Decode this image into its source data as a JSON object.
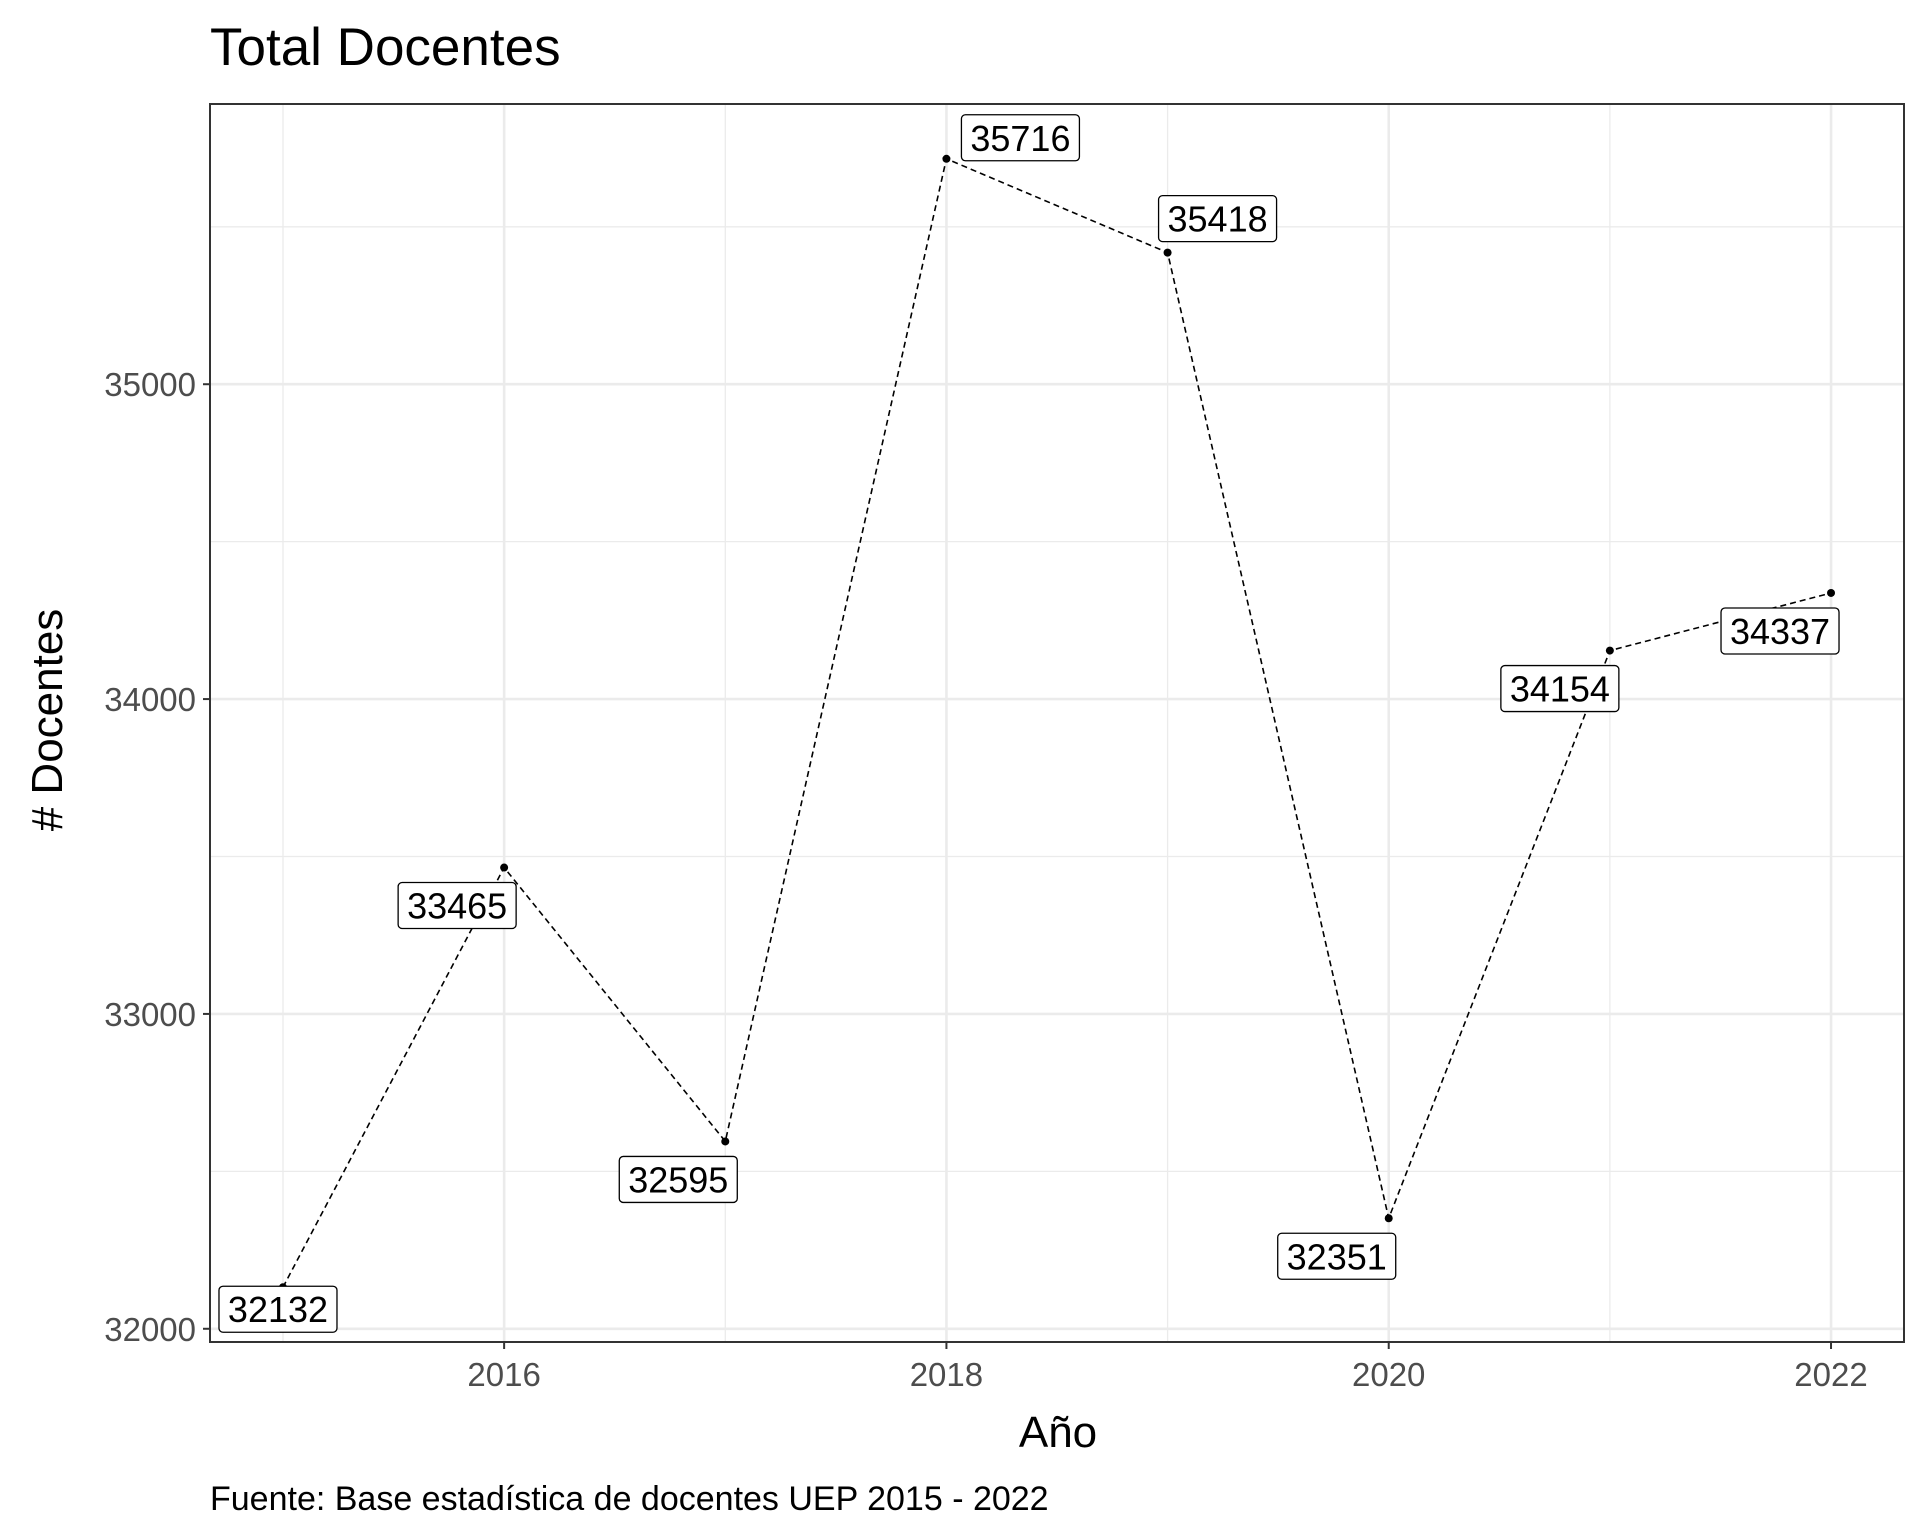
{
  "chart_data": {
    "type": "line",
    "title": "Total Docentes",
    "xlabel": "Año",
    "ylabel": "# Docentes",
    "caption": "Fuente: Base estadística de docentes UEP 2015 - 2022",
    "x": [
      2015,
      2016,
      2017,
      2018,
      2019,
      2020,
      2021,
      2022
    ],
    "values": [
      32132,
      33465,
      32595,
      35716,
      35418,
      32351,
      34154,
      34337
    ],
    "data_labels": [
      "32132",
      "33465",
      "32595",
      "35716",
      "35418",
      "32351",
      "34154",
      "34337"
    ],
    "xticks": [
      2016,
      2018,
      2020,
      2022
    ],
    "xtick_labels": [
      "2016",
      "2018",
      "2020",
      "2022"
    ],
    "yticks": [
      32000,
      33000,
      34000,
      35000
    ],
    "ytick_labels": [
      "32000",
      "33000",
      "34000",
      "35000"
    ],
    "xlim": [
      2014.67,
      2022.33
    ],
    "ylim": [
      31958,
      35890
    ],
    "line_style": "dashed",
    "line_color": "#000000",
    "grid": true,
    "theme": "bw"
  }
}
